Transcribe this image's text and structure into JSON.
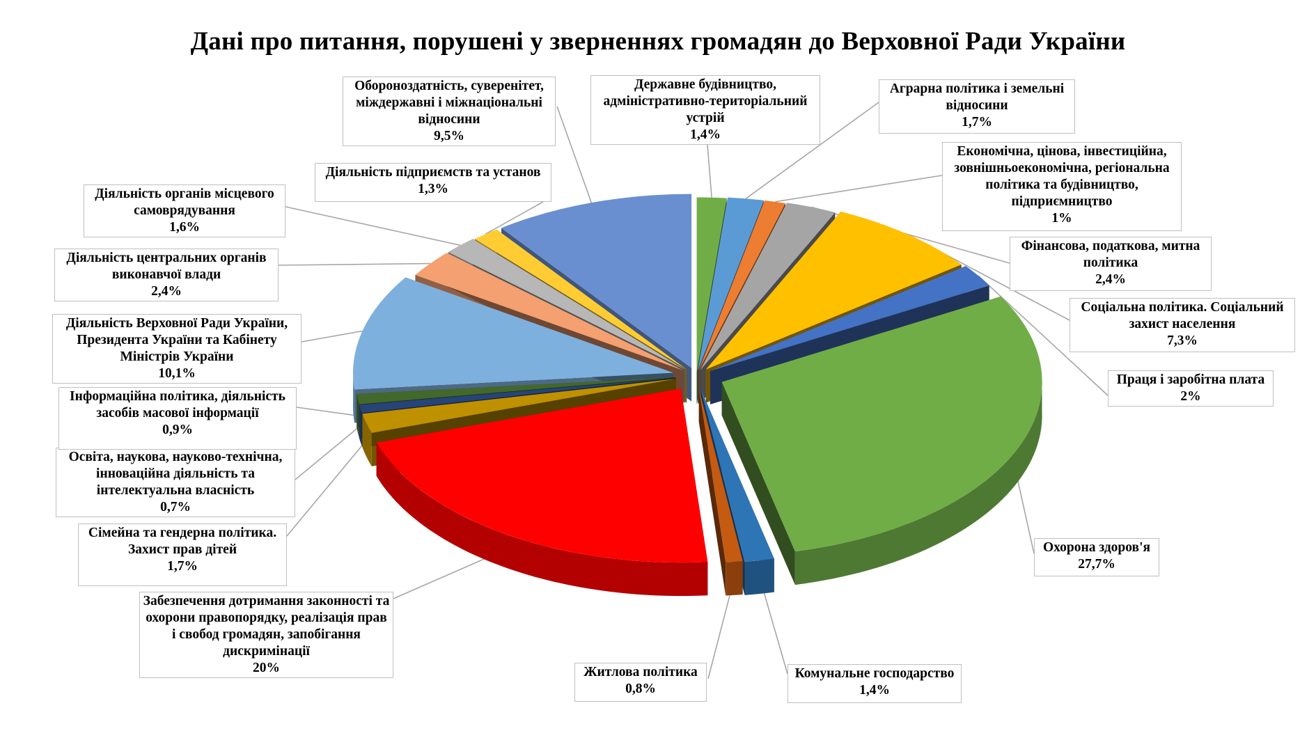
{
  "chart_data": {
    "type": "pie",
    "title": "Дані про питання, порушені у зверненнях громадян до Верховної Ради України",
    "slices": [
      {
        "name": "Державне будівництво, адміністративно-територіальний устрій",
        "label": "1,4%",
        "value": 1.4,
        "color": "#70ad47"
      },
      {
        "name": "Аграрна політика і земельні відносини",
        "label": "1,7%",
        "value": 1.7,
        "color": "#5b9bd5"
      },
      {
        "name": "Економічна, цінова, інвестиційна, зовнішньоекономічна, регіональна політика та будівництво, підприємництво",
        "label": "1%",
        "value": 1.0,
        "color": "#ed7d31"
      },
      {
        "name": "Фінансова, податкова, митна політика",
        "label": "2,4%",
        "value": 2.4,
        "color": "#a5a5a5"
      },
      {
        "name": "Соціальна політика. Соціальний захист населення",
        "label": "7,3%",
        "value": 7.3,
        "color": "#ffc000"
      },
      {
        "name": "Праця і заробітна плата",
        "label": "2%",
        "value": 2.0,
        "color": "#4472c4"
      },
      {
        "name": "Охорона здоров'я",
        "label": "27,7%",
        "value": 27.7,
        "color": "#70ad47"
      },
      {
        "name": "Комунальне господарство",
        "label": "1,4%",
        "value": 1.4,
        "color": "#2e75b6"
      },
      {
        "name": "Житлова політика",
        "label": "0,8%",
        "value": 0.8,
        "color": "#c55a11"
      },
      {
        "name": "Забезпечення дотримання законності та охорони правопорядку, реалізація прав і свобод громадян, запобігання дискримінації",
        "label": "20%",
        "value": 20.0,
        "color": "#ff0000"
      },
      {
        "name": "Сімейна та гендерна політика. Захист прав дітей",
        "label": "1,7%",
        "value": 1.7,
        "color": "#bf9000"
      },
      {
        "name": "Освіта, наукова, науково-технічна, інноваційна діяльність та інтелектуальна власність",
        "label": "0,7%",
        "value": 0.7,
        "color": "#264478"
      },
      {
        "name": "Інформаційна політика, діяльність засобів масової інформації",
        "label": "0,9%",
        "value": 0.9,
        "color": "#43682b"
      },
      {
        "name": "Діяльність Верховної Ради України, Президента України та Кабінету Міністрів України",
        "label": "10,1%",
        "value": 10.1,
        "color": "#7eb0de"
      },
      {
        "name": "Діяльність центральних органів виконавчої влади",
        "label": "2,4%",
        "value": 2.4,
        "color": "#f4a071"
      },
      {
        "name": "Діяльність органів місцевого самоврядування",
        "label": "1,6%",
        "value": 1.6,
        "color": "#b7b7b7"
      },
      {
        "name": "Діяльність підприємств та установ",
        "label": "1,3%",
        "value": 1.3,
        "color": "#ffcd33"
      },
      {
        "name": "Обороноздатність, суверенітет, міждержавні і міжнаціональні відносини",
        "label": "9,5%",
        "value": 9.5,
        "color": "#6a8fd0"
      }
    ]
  }
}
